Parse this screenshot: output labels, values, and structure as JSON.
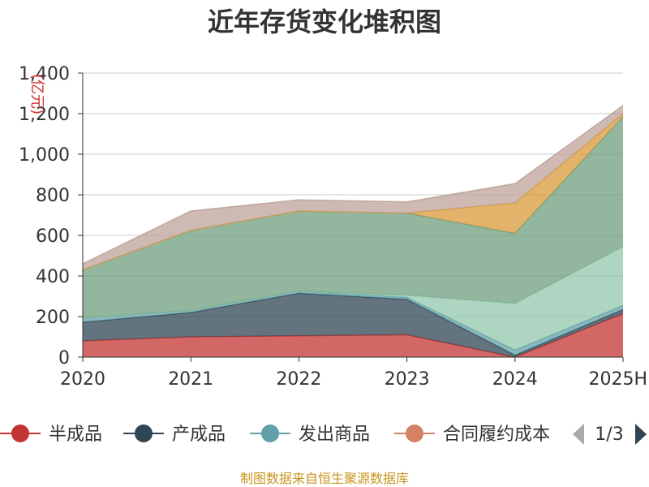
{
  "title": "近年存货变化堆积图",
  "source_note": "制图数据来自恒生聚源数据库",
  "legend": {
    "items": [
      {
        "label": "半成品",
        "color": "#c23531"
      },
      {
        "label": "产成品",
        "color": "#2f4554"
      },
      {
        "label": "发出商品",
        "color": "#61a0a8"
      },
      {
        "label": "合同履约成本",
        "color": "#d48265"
      }
    ],
    "page_indicator": "1/3"
  },
  "chart_data": {
    "type": "area",
    "stacked": true,
    "title": "近年存货变化堆积图",
    "y_unit_label": "(亿元)",
    "categories": [
      "2020",
      "2021",
      "2022",
      "2023",
      "2024",
      "2025H"
    ],
    "ylim": [
      0,
      1400
    ],
    "yticks": [
      "0",
      "200",
      "400",
      "600",
      "800",
      "1,000",
      "1,200",
      "1,400"
    ],
    "grid": true,
    "legend_position": "bottom",
    "series": [
      {
        "name": "半成品",
        "color": "#c23531",
        "values": [
          80,
          100,
          105,
          110,
          0,
          215
        ]
      },
      {
        "name": "产成品",
        "color": "#2f4554",
        "values": [
          92,
          120,
          210,
          175,
          10,
          20
        ]
      },
      {
        "values": [
          20,
          10,
          10,
          10,
          25,
          20
        ],
        "color": "#61a0a8"
      },
      {
        "values": [
          0,
          0,
          0,
          10,
          230,
          290
        ],
        "color": "#91c7ae"
      },
      {
        "values": [
          238,
          395,
          395,
          405,
          345,
          640
        ],
        "color": "#6d9f7d"
      },
      {
        "values": [
          0,
          0,
          0,
          0,
          150,
          15
        ],
        "color": "#d99a3a"
      },
      {
        "values": [
          30,
          95,
          55,
          55,
          95,
          40
        ],
        "color": "#bda29a"
      }
    ]
  }
}
